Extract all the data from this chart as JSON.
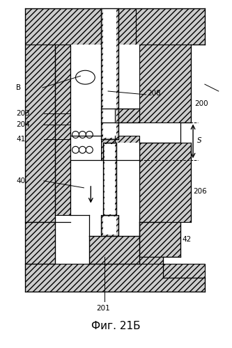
{
  "title": "Фиг. 21Б",
  "background_color": "#ffffff",
  "line_color": "#000000",
  "fig_width": 3.33,
  "fig_height": 5.0,
  "dpi": 100
}
